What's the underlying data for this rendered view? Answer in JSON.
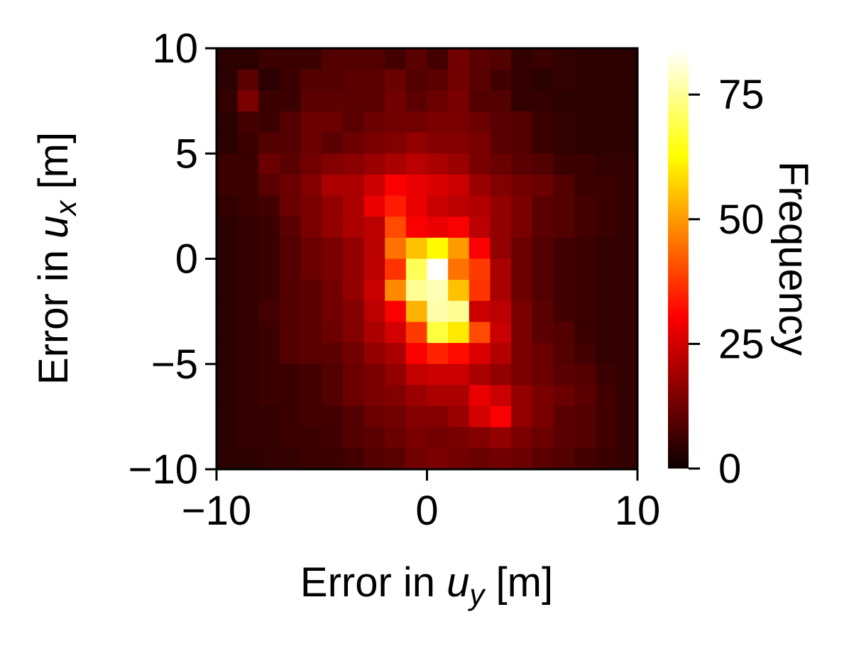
{
  "chart_data": {
    "type": "heatmap",
    "xlabel": {
      "prefix": "Error in ",
      "var": "u",
      "sub": "y",
      "suffix": " [m]"
    },
    "ylabel": {
      "prefix": "Error in ",
      "var": "u",
      "sub": "x",
      "suffix": " [m]"
    },
    "xlim": [
      -10,
      10
    ],
    "ylim": [
      -10,
      10
    ],
    "x_ticks": [
      -10,
      0,
      10
    ],
    "x_tick_labels": [
      "−10",
      "0",
      "10"
    ],
    "y_ticks": [
      -10,
      -5,
      0,
      5,
      10
    ],
    "y_tick_labels": [
      "−10",
      "−5",
      "0",
      "5",
      "10"
    ],
    "bins": 20,
    "colormap": "hot",
    "colorbar": {
      "label": "Frequency",
      "range": [
        0,
        84
      ],
      "ticks": [
        0,
        25,
        50,
        75
      ],
      "tick_labels": [
        "0",
        "25",
        "50",
        "75"
      ]
    },
    "grid": false,
    "counts_note": "rows ordered top (y=10) to bottom (y=-10), columns left (x=-10) to right (x=10)",
    "counts": [
      [
        4,
        4,
        6,
        6,
        6,
        9,
        9,
        9,
        7,
        10,
        7,
        13,
        10,
        9,
        5,
        6,
        5,
        4,
        4,
        4
      ],
      [
        4,
        10,
        4,
        6,
        9,
        9,
        10,
        10,
        12,
        9,
        10,
        13,
        10,
        7,
        5,
        4,
        5,
        4,
        4,
        4
      ],
      [
        5,
        14,
        6,
        6,
        10,
        10,
        10,
        10,
        13,
        10,
        12,
        14,
        9,
        9,
        5,
        5,
        4,
        4,
        4,
        4
      ],
      [
        4,
        7,
        6,
        9,
        12,
        12,
        10,
        12,
        13,
        13,
        14,
        14,
        12,
        10,
        9,
        6,
        5,
        4,
        4,
        4
      ],
      [
        4,
        6,
        9,
        9,
        12,
        10,
        12,
        14,
        15,
        17,
        15,
        15,
        14,
        10,
        9,
        6,
        5,
        4,
        4,
        4
      ],
      [
        6,
        6,
        12,
        10,
        13,
        15,
        16,
        18,
        20,
        22,
        20,
        18,
        14,
        12,
        10,
        9,
        6,
        6,
        5,
        5
      ],
      [
        6,
        6,
        10,
        12,
        15,
        20,
        20,
        24,
        30,
        28,
        26,
        24,
        18,
        15,
        13,
        12,
        9,
        6,
        6,
        5
      ],
      [
        5,
        6,
        7,
        12,
        14,
        17,
        20,
        28,
        34,
        28,
        24,
        22,
        21,
        17,
        14,
        10,
        9,
        7,
        6,
        5
      ],
      [
        4,
        5,
        6,
        10,
        14,
        17,
        20,
        22,
        40,
        30,
        28,
        30,
        22,
        17,
        14,
        10,
        9,
        7,
        6,
        5
      ],
      [
        4,
        5,
        6,
        9,
        12,
        14,
        17,
        22,
        45,
        55,
        62,
        50,
        30,
        17,
        12,
        9,
        7,
        6,
        5,
        5
      ],
      [
        4,
        5,
        6,
        9,
        12,
        14,
        17,
        22,
        37,
        70,
        85,
        45,
        38,
        20,
        12,
        9,
        7,
        6,
        5,
        5
      ],
      [
        4,
        5,
        6,
        9,
        10,
        13,
        17,
        24,
        48,
        75,
        78,
        55,
        37,
        20,
        12,
        9,
        7,
        6,
        5,
        5
      ],
      [
        4,
        5,
        7,
        9,
        10,
        13,
        15,
        22,
        30,
        53,
        77,
        75,
        24,
        22,
        14,
        10,
        7,
        6,
        5,
        5
      ],
      [
        4,
        5,
        6,
        9,
        10,
        12,
        15,
        20,
        25,
        38,
        68,
        60,
        40,
        24,
        14,
        10,
        9,
        6,
        5,
        5
      ],
      [
        4,
        5,
        6,
        9,
        10,
        10,
        13,
        17,
        20,
        30,
        35,
        32,
        26,
        21,
        14,
        12,
        9,
        7,
        5,
        5
      ],
      [
        4,
        5,
        6,
        6,
        7,
        9,
        12,
        14,
        17,
        23,
        24,
        24,
        20,
        17,
        14,
        12,
        10,
        9,
        6,
        5
      ],
      [
        4,
        5,
        6,
        6,
        7,
        9,
        12,
        14,
        15,
        18,
        20,
        20,
        28,
        24,
        17,
        14,
        12,
        10,
        7,
        5
      ],
      [
        4,
        5,
        5,
        6,
        7,
        7,
        9,
        12,
        13,
        15,
        15,
        18,
        25,
        30,
        17,
        14,
        10,
        9,
        7,
        5
      ],
      [
        4,
        5,
        5,
        6,
        6,
        7,
        9,
        10,
        12,
        14,
        13,
        14,
        15,
        17,
        14,
        12,
        10,
        9,
        7,
        5
      ],
      [
        4,
        4,
        5,
        5,
        6,
        6,
        7,
        9,
        10,
        13,
        14,
        13,
        12,
        13,
        12,
        10,
        9,
        7,
        6,
        5
      ]
    ]
  }
}
